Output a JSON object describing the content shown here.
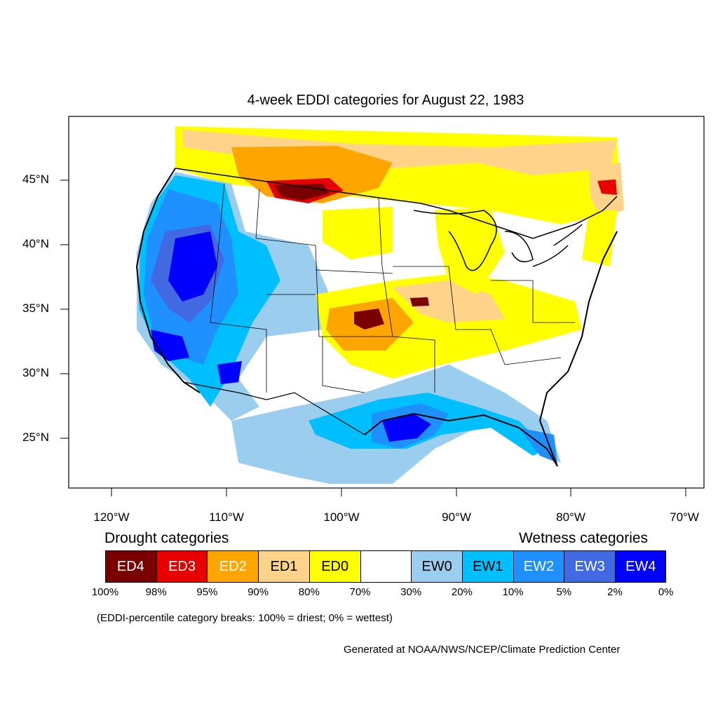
{
  "title": "4-week EDDI categories for August 22, 1983",
  "lat_labels": [
    "45°N",
    "40°N",
    "35°N",
    "30°N",
    "25°N"
  ],
  "lon_labels": [
    "120°W",
    "110°W",
    "100°W",
    "90°W",
    "80°W",
    "70°W"
  ],
  "legend": {
    "drought_heading": "Drought categories",
    "wetness_heading": "Wetness categories",
    "boxes": [
      {
        "label": "ED4",
        "color": "#7a0000",
        "text_color": "#ffffff"
      },
      {
        "label": "ED3",
        "color": "#e60000",
        "text_color": "#ffffff"
      },
      {
        "label": "ED2",
        "color": "#ffa500",
        "text_color": "#ffffff"
      },
      {
        "label": "ED1",
        "color": "#ffd38a",
        "text_color": "#000000"
      },
      {
        "label": "ED0",
        "color": "#ffff00",
        "text_color": "#000000"
      },
      {
        "label": "",
        "color": "#ffffff",
        "text_color": "#000000"
      },
      {
        "label": "EW0",
        "color": "#9acdee",
        "text_color": "#000000"
      },
      {
        "label": "EW1",
        "color": "#00bfff",
        "text_color": "#000000"
      },
      {
        "label": "EW2",
        "color": "#1e90ff",
        "text_color": "#ffffff"
      },
      {
        "label": "EW3",
        "color": "#4169e1",
        "text_color": "#ffffff"
      },
      {
        "label": "EW4",
        "color": "#0000ff",
        "text_color": "#ffffff"
      }
    ],
    "ticks": [
      "100%",
      "98%",
      "95%",
      "90%",
      "80%",
      "70%",
      "30%",
      "20%",
      "10%",
      "5%",
      "2%",
      "0%"
    ],
    "note": "(EDDI-percentile category breaks: 100% = driest; 0% = wettest)"
  },
  "credit": "Generated at NOAA/NWS/NCEP/Climate Prediction Center",
  "colors": {
    "ed4": "#7a0000",
    "ed3": "#e60000",
    "ed2": "#ffa500",
    "ed1": "#ffd38a",
    "ed0": "#ffff00",
    "ew0": "#9acdee",
    "ew1": "#00bfff",
    "ew2": "#1e90ff",
    "ew3": "#4169e1",
    "ew4": "#0000ff"
  }
}
